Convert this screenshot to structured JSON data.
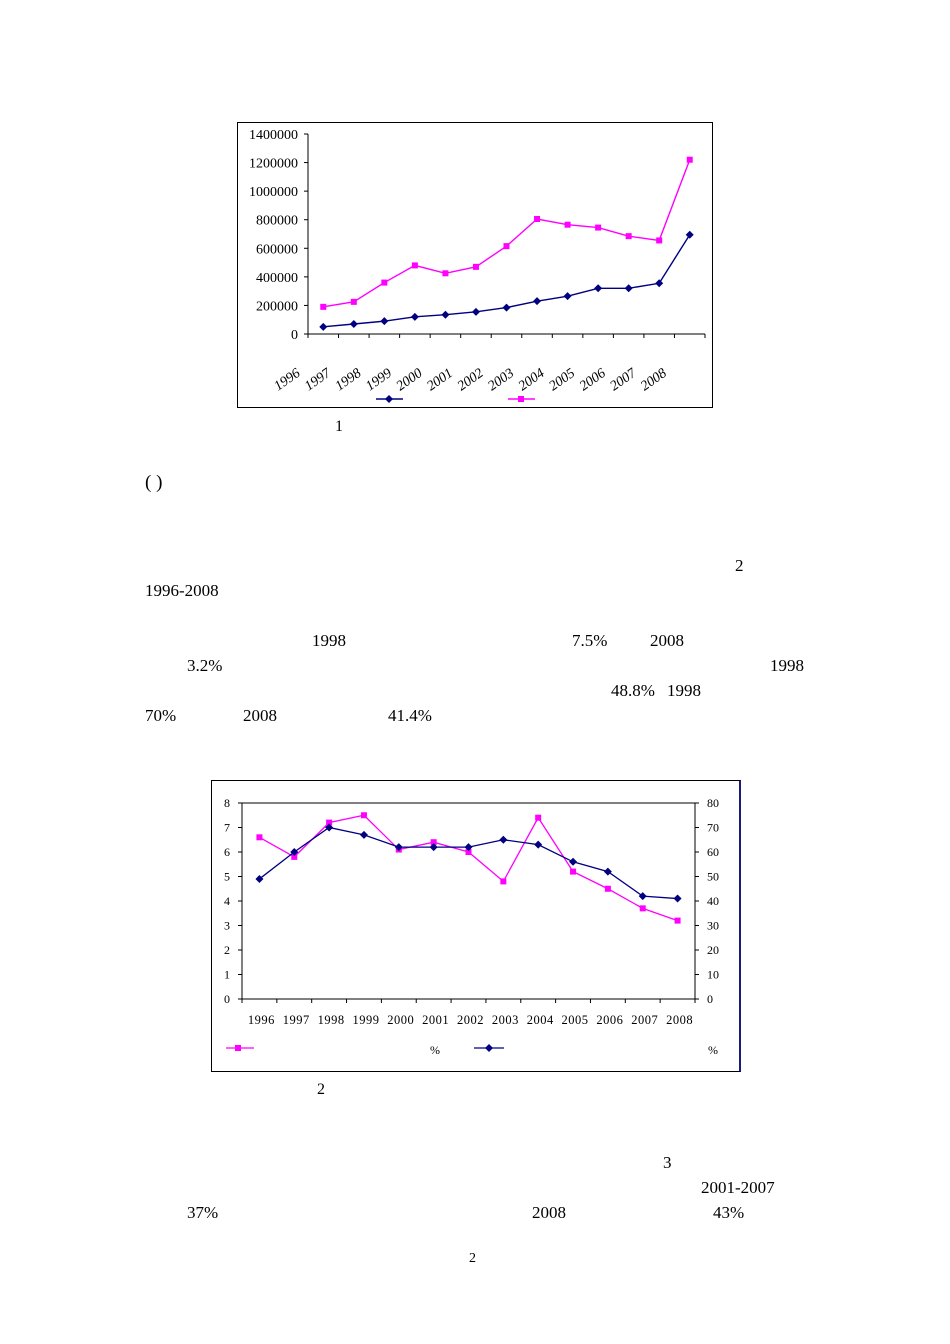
{
  "chart1": {
    "caption": "1",
    "colors": {
      "series_a": "#ff00ff",
      "series_b": "#000080"
    },
    "chart_data": {
      "type": "line",
      "title": "",
      "categories": [
        "1996",
        "1997",
        "1998",
        "1999",
        "2000",
        "2001",
        "2002",
        "2003",
        "2004",
        "2005",
        "2006",
        "2007",
        "2008"
      ],
      "series": [
        {
          "name": "",
          "color": "#ff00ff",
          "marker": "square",
          "values": [
            190000,
            225000,
            360000,
            480000,
            425000,
            470000,
            615000,
            805000,
            765000,
            745000,
            685000,
            655000,
            1220000
          ]
        },
        {
          "name": "",
          "color": "#000080",
          "marker": "diamond",
          "values": [
            50000,
            70000,
            90000,
            120000,
            135000,
            155000,
            185000,
            230000,
            265000,
            320000,
            320000,
            355000,
            695000
          ]
        }
      ],
      "y_ticks": [
        "1400000",
        "1200000",
        "1000000",
        "800000",
        "600000",
        "400000",
        "200000",
        "0"
      ],
      "ylim": [
        0,
        1400000
      ],
      "xlabel": "",
      "ylabel": ""
    }
  },
  "section_mark": "(    )",
  "para1": {
    "l1_num": "2",
    "l2": "1996-2008",
    "l3_a": "1998",
    "l3_b": "7.5%",
    "l3_c": "2008",
    "l4_a": "3.2%",
    "l4_b": "1998",
    "l5_a": "48.8%",
    "l5_b": "1998",
    "l6_a": "70%",
    "l6_b": "2008",
    "l6_c": "41.4%"
  },
  "chart2": {
    "caption": "2",
    "colors": {
      "series_a": "#ff00ff",
      "series_b": "#000080"
    },
    "chart_data": {
      "type": "line",
      "title": "",
      "categories": [
        "1996",
        "1997",
        "1998",
        "1999",
        "2000",
        "2001",
        "2002",
        "2003",
        "2004",
        "2005",
        "2006",
        "2007",
        "2008"
      ],
      "series": [
        {
          "name": "%",
          "axis": "left",
          "color": "#ff00ff",
          "marker": "square",
          "values": [
            6.6,
            5.8,
            7.2,
            7.5,
            6.1,
            6.4,
            6.0,
            4.8,
            7.4,
            5.2,
            4.5,
            3.7,
            3.2
          ]
        },
        {
          "name": "%",
          "axis": "right",
          "color": "#000080",
          "marker": "diamond",
          "values": [
            49,
            60,
            70,
            67,
            62,
            62,
            62,
            65,
            63,
            56,
            52,
            42,
            41
          ]
        }
      ],
      "left_ticks": [
        "8",
        "7",
        "6",
        "5",
        "4",
        "3",
        "2",
        "1",
        "0"
      ],
      "right_ticks": [
        "80",
        "70",
        "60",
        "50",
        "40",
        "30",
        "20",
        "10",
        "0"
      ],
      "ylim_left": [
        0,
        8
      ],
      "ylim_right": [
        0,
        80
      ]
    }
  },
  "para2": {
    "l1_num": "3",
    "l2": "2001-2007",
    "l3_a": "37%",
    "l3_b": "2008",
    "l3_c": "43%"
  },
  "page_number": "2"
}
